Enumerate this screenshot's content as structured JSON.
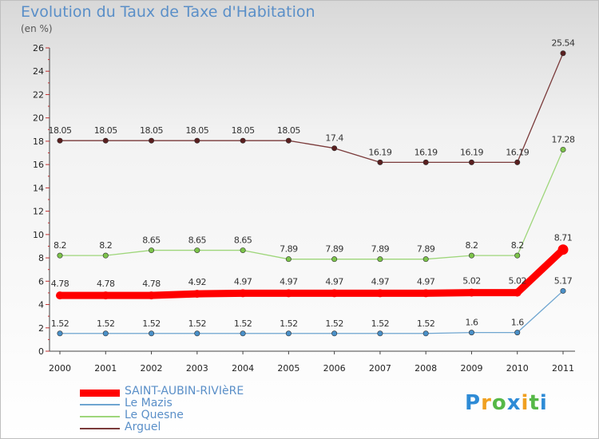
{
  "chart_data": {
    "type": "line",
    "title": "Evolution du Taux de Taxe d'Habitation",
    "subtitle": "(en %)",
    "xlabel": "",
    "ylabel": "(en %)",
    "ylim": [
      0,
      26
    ],
    "yticks": [
      "0",
      "2",
      "4",
      "6",
      "8",
      "10",
      "12",
      "14",
      "16",
      "18",
      "20",
      "22",
      "24",
      "26"
    ],
    "categories": [
      "2000",
      "2001",
      "2002",
      "2003",
      "2004",
      "2005",
      "2006",
      "2007",
      "2008",
      "2009",
      "2010",
      "2011"
    ],
    "series": [
      {
        "name": "SAINT-AUBIN-RIVIèRE",
        "color": "#ff0000",
        "values": [
          4.78,
          4.78,
          4.78,
          4.92,
          4.97,
          4.97,
          4.97,
          4.97,
          4.97,
          5.02,
          5.02,
          8.71
        ],
        "labels": [
          "4.78",
          "4.78",
          "4.78",
          "4.92",
          "4.97",
          "4.97",
          "4.97",
          "4.97",
          "4.97",
          "5.02",
          "5.02",
          "8.71"
        ]
      },
      {
        "name": "Le Mazis",
        "color": "#6ea5d0",
        "marker": "#4a90c8",
        "values": [
          1.52,
          1.52,
          1.52,
          1.52,
          1.52,
          1.52,
          1.52,
          1.52,
          1.52,
          1.6,
          1.6,
          5.17
        ],
        "labels": [
          "1.52",
          "1.52",
          "1.52",
          "1.52",
          "1.52",
          "1.52",
          "1.52",
          "1.52",
          "1.52",
          "1.6",
          "1.6",
          "5.17"
        ]
      },
      {
        "name": "Le Quesne",
        "color": "#9ed67a",
        "marker": "#7cc44a",
        "values": [
          8.2,
          8.2,
          8.65,
          8.65,
          8.65,
          7.89,
          7.89,
          7.89,
          7.89,
          8.2,
          8.2,
          17.28
        ],
        "labels": [
          "8.2",
          "8.2",
          "8.65",
          "8.65",
          "8.65",
          "7.89",
          "7.89",
          "7.89",
          "7.89",
          "8.2",
          "8.2",
          "17.28"
        ]
      },
      {
        "name": "Arguel",
        "color": "#7a3a3a",
        "marker": "#5a1f1f",
        "values": [
          18.05,
          18.05,
          18.05,
          18.05,
          18.05,
          18.05,
          17.4,
          16.19,
          16.19,
          16.19,
          16.19,
          25.54
        ],
        "labels": [
          "18.05",
          "18.05",
          "18.05",
          "18.05",
          "18.05",
          "18.05",
          "17.4",
          "16.19",
          "16.19",
          "16.19",
          "16.19",
          "25.54"
        ]
      }
    ],
    "legend_position": "bottom-left"
  },
  "logo": {
    "letters": [
      "P",
      "r",
      "o",
      "x",
      "i",
      "t",
      "i"
    ],
    "colors": [
      "#2e8bd6",
      "#f0a020",
      "#56b847",
      "#2e8bd6",
      "#f0a020",
      "#56b847",
      "#2e8bd6"
    ]
  }
}
